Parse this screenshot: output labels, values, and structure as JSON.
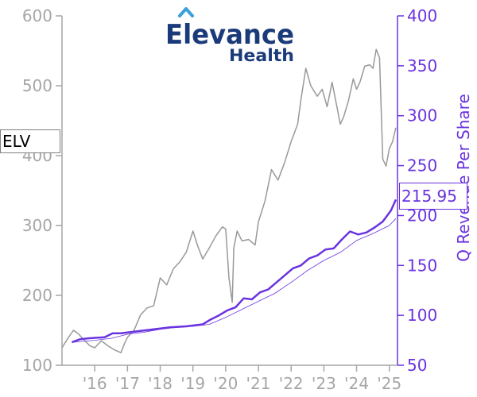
{
  "brand": {
    "name": "Elevance",
    "sub": "Health",
    "name_color": "#1a3a7a",
    "accent_color": "#3ca0dc"
  },
  "ticker": "ELV",
  "current_value_label": "215.95",
  "colors": {
    "price": "#999999",
    "revenue": "#6a33e0",
    "revenue_thin": "#6a33e0",
    "axis_left": "#a6a6a6",
    "axis_right": "#6a33e0"
  },
  "chart_data": {
    "type": "line",
    "ylabel_right": "Q Revenue Per Share",
    "x_ticks": [
      "'16",
      "'17",
      "'18",
      "'19",
      "'20",
      "'21",
      "'22",
      "'23",
      "'24",
      "'25"
    ],
    "x_tick_years": [
      2016,
      2017,
      2018,
      2019,
      2020,
      2021,
      2022,
      2023,
      2024,
      2025
    ],
    "xlim": [
      2015.0,
      2025.25
    ],
    "y_left": {
      "lim": [
        100,
        600
      ],
      "ticks": [
        100,
        200,
        300,
        400,
        500,
        600
      ]
    },
    "y_right": {
      "lim": [
        50,
        400
      ],
      "ticks": [
        50,
        100,
        150,
        200,
        250,
        300,
        350,
        400
      ]
    },
    "series": [
      {
        "id": "price",
        "axis": "left",
        "x": [
          2015.0,
          2015.2,
          2015.35,
          2015.5,
          2015.7,
          2015.85,
          2016.0,
          2016.2,
          2016.4,
          2016.6,
          2016.8,
          2016.9,
          2017.0,
          2017.2,
          2017.4,
          2017.6,
          2017.8,
          2018.0,
          2018.2,
          2018.4,
          2018.6,
          2018.8,
          2019.0,
          2019.15,
          2019.3,
          2019.5,
          2019.7,
          2019.9,
          2020.0,
          2020.1,
          2020.2,
          2020.25,
          2020.35,
          2020.5,
          2020.7,
          2020.9,
          2021.0,
          2021.2,
          2021.4,
          2021.6,
          2021.8,
          2022.0,
          2022.2,
          2022.3,
          2022.45,
          2022.6,
          2022.8,
          2022.95,
          2023.1,
          2023.25,
          2023.4,
          2023.5,
          2023.6,
          2023.75,
          2023.9,
          2024.0,
          2024.1,
          2024.25,
          2024.4,
          2024.5,
          2024.6,
          2024.7,
          2024.8,
          2024.9,
          2025.0,
          2025.1,
          2025.2
        ],
        "y": [
          125,
          140,
          150,
          145,
          135,
          128,
          125,
          135,
          128,
          122,
          118,
          130,
          140,
          150,
          172,
          182,
          185,
          225,
          215,
          238,
          248,
          262,
          292,
          270,
          252,
          268,
          285,
          298,
          295,
          225,
          190,
          268,
          292,
          278,
          280,
          272,
          305,
          335,
          380,
          365,
          390,
          420,
          445,
          480,
          525,
          500,
          485,
          495,
          470,
          505,
          470,
          445,
          455,
          478,
          510,
          495,
          505,
          528,
          530,
          525,
          552,
          540,
          395,
          385,
          410,
          420,
          440
        ]
      },
      {
        "id": "revenue",
        "axis": "right",
        "x": [
          2015.3,
          2015.55,
          2015.8,
          2016.05,
          2016.3,
          2016.55,
          2016.8,
          2017.05,
          2017.3,
          2017.55,
          2017.8,
          2018.05,
          2018.3,
          2018.55,
          2018.8,
          2019.05,
          2019.3,
          2019.55,
          2019.8,
          2020.05,
          2020.3,
          2020.55,
          2020.8,
          2021.05,
          2021.3,
          2021.55,
          2021.8,
          2022.05,
          2022.3,
          2022.55,
          2022.8,
          2023.05,
          2023.3,
          2023.55,
          2023.8,
          2024.05,
          2024.3,
          2024.55,
          2024.8,
          2025.05,
          2025.2
        ],
        "y": [
          73,
          76,
          77,
          77.5,
          78,
          82,
          82,
          83,
          84,
          85,
          86,
          87,
          88,
          88.5,
          89,
          90,
          91,
          96,
          100,
          105,
          108,
          117,
          116,
          123,
          126,
          133,
          140,
          147,
          150,
          157,
          160,
          166,
          167,
          176,
          184,
          181,
          183,
          188,
          194,
          205,
          215.95
        ]
      },
      {
        "id": "revenue_avg",
        "axis": "right",
        "x": [
          2015.3,
          2016.0,
          2016.5,
          2017.0,
          2017.5,
          2018.0,
          2018.5,
          2019.0,
          2019.5,
          2020.0,
          2020.5,
          2021.0,
          2021.5,
          2022.0,
          2022.5,
          2023.0,
          2023.5,
          2024.0,
          2024.5,
          2025.0,
          2025.2
        ],
        "y": [
          73,
          75,
          77,
          81,
          83,
          86,
          88,
          89,
          91,
          98,
          106,
          114,
          122,
          133,
          145,
          155,
          163,
          175,
          182,
          190,
          197
        ]
      }
    ]
  }
}
